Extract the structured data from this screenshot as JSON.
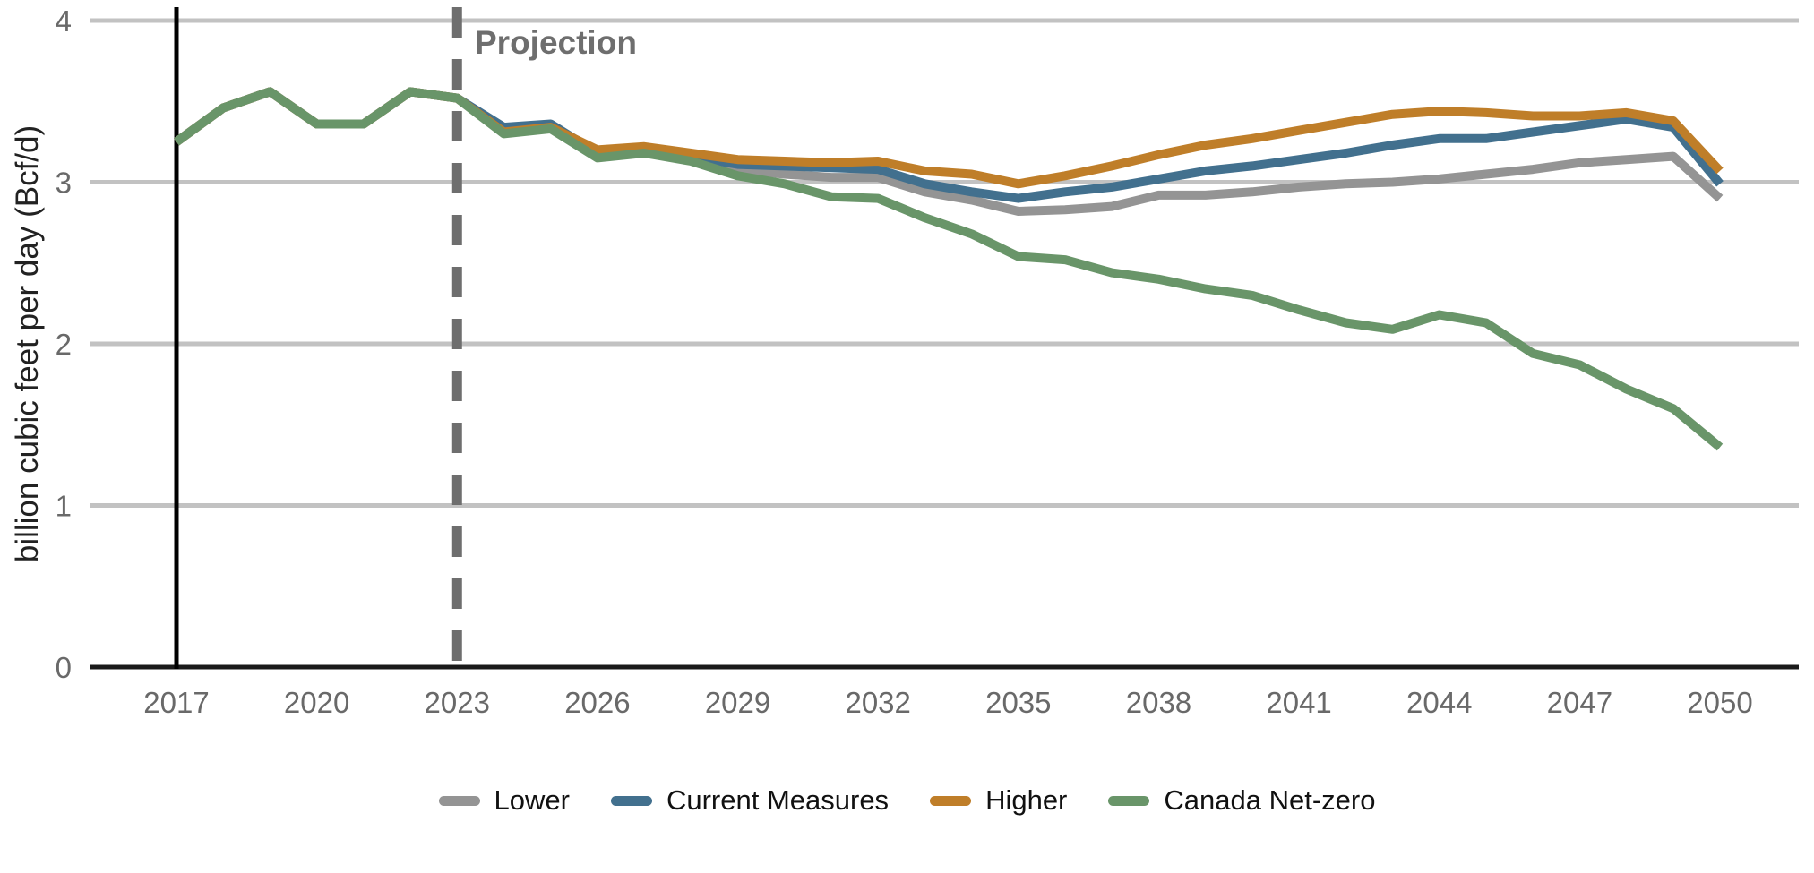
{
  "chart": {
    "ylabel": "billion cubic feet per day (Bcf/d)",
    "projection_label": "Projection"
  },
  "chart_data": {
    "type": "line",
    "title": "",
    "xlabel": "",
    "ylabel": "billion cubic feet per day (Bcf/d)",
    "ylim": [
      0,
      4
    ],
    "xlim": [
      2015.2,
      2051.8
    ],
    "y_ticks": [
      0,
      1,
      2,
      3,
      4
    ],
    "x_ticks": [
      2017,
      2020,
      2023,
      2026,
      2029,
      2032,
      2035,
      2038,
      2041,
      2044,
      2047,
      2050
    ],
    "grid": "horizontal",
    "legend_position": "bottom",
    "annotations": [
      {
        "type": "solid-vertical-line",
        "x": 2017,
        "color": "#000000"
      },
      {
        "type": "dashed-vertical-line",
        "x": 2023,
        "color": "#6e6e6e",
        "label": "Projection"
      }
    ],
    "x": [
      2017,
      2018,
      2019,
      2020,
      2021,
      2022,
      2023,
      2024,
      2025,
      2026,
      2027,
      2028,
      2029,
      2030,
      2031,
      2032,
      2033,
      2034,
      2035,
      2036,
      2037,
      2038,
      2039,
      2040,
      2041,
      2042,
      2043,
      2044,
      2045,
      2046,
      2047,
      2048,
      2049,
      2050
    ],
    "series": [
      {
        "name": "Lower",
        "color": "#949494",
        "values": [
          3.25,
          3.46,
          3.56,
          3.36,
          3.36,
          3.56,
          3.52,
          3.32,
          3.35,
          3.16,
          3.18,
          3.14,
          3.08,
          3.05,
          3.03,
          3.03,
          2.94,
          2.89,
          2.82,
          2.83,
          2.85,
          2.92,
          2.92,
          2.94,
          2.97,
          2.99,
          3.0,
          3.02,
          3.05,
          3.08,
          3.12,
          3.14,
          3.16,
          2.9
        ]
      },
      {
        "name": "Current Measures",
        "color": "#42708e",
        "values": [
          3.25,
          3.46,
          3.56,
          3.36,
          3.36,
          3.56,
          3.52,
          3.34,
          3.36,
          3.18,
          3.2,
          3.16,
          3.11,
          3.1,
          3.09,
          3.08,
          2.99,
          2.94,
          2.9,
          2.94,
          2.97,
          3.02,
          3.07,
          3.1,
          3.14,
          3.18,
          3.23,
          3.27,
          3.27,
          3.31,
          3.35,
          3.39,
          3.34,
          2.99
        ]
      },
      {
        "name": "Higher",
        "color": "#bf7e29",
        "values": [
          3.25,
          3.46,
          3.56,
          3.36,
          3.36,
          3.56,
          3.52,
          3.31,
          3.34,
          3.2,
          3.22,
          3.18,
          3.14,
          3.13,
          3.12,
          3.13,
          3.07,
          3.05,
          2.99,
          3.04,
          3.1,
          3.17,
          3.23,
          3.27,
          3.32,
          3.37,
          3.42,
          3.44,
          3.43,
          3.41,
          3.41,
          3.43,
          3.38,
          3.07
        ]
      },
      {
        "name": "Canada Net-zero",
        "color": "#699569",
        "values": [
          3.25,
          3.46,
          3.56,
          3.36,
          3.36,
          3.56,
          3.52,
          3.3,
          3.33,
          3.15,
          3.18,
          3.13,
          3.04,
          2.99,
          2.91,
          2.9,
          2.78,
          2.68,
          2.54,
          2.52,
          2.44,
          2.4,
          2.34,
          2.3,
          2.21,
          2.13,
          2.09,
          2.18,
          2.13,
          1.94,
          1.87,
          1.72,
          1.6,
          1.36
        ]
      }
    ]
  }
}
